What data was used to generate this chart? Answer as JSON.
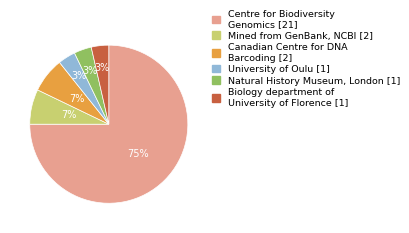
{
  "values": [
    21,
    2,
    2,
    1,
    1,
    1
  ],
  "colors": [
    "#e8a090",
    "#c8d070",
    "#e8a040",
    "#90b8d8",
    "#90c060",
    "#c86040"
  ],
  "pct_labels": [
    "75%",
    "7%",
    "7%",
    "3%",
    "3%",
    "3%"
  ],
  "legend_labels": [
    "Centre for Biodiversity\nGenomics [21]",
    "Mined from GenBank, NCBI [2]",
    "Canadian Centre for DNA\nBarcoding [2]",
    "University of Oulu [1]",
    "Natural History Museum, London [1]",
    "Biology department of\nUniversity of Florence [1]"
  ],
  "text_color": "white",
  "bg_color": "#ffffff",
  "fontsize_pct": 7,
  "fontsize_legend": 6.8
}
